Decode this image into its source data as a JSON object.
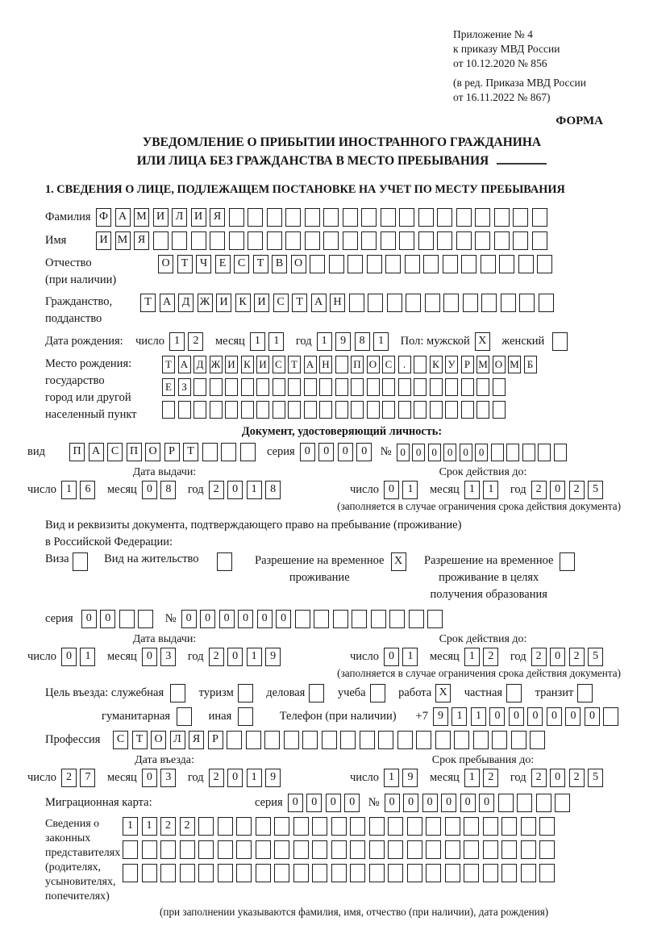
{
  "header": {
    "appendix": "Приложение № 4",
    "order1": "к приказу МВД России",
    "order2": "от 10.12.2020 № 856",
    "rev1": "(в ред. Приказа МВД России",
    "rev2": "от 16.11.2022 № 867)",
    "forma": "ФОРМА"
  },
  "title": {
    "line1": "УВЕДОМЛЕНИЕ О ПРИБЫТИИ ИНОСТРАННОГО ГРАЖДАНИНА",
    "line2": "ИЛИ ЛИЦА БЕЗ ГРАЖДАНСТВА В МЕСТО ПРЕБЫВАНИЯ"
  },
  "section1_heading": "1. СВЕДЕНИЯ О ЛИЦЕ, ПОДЛЕЖАЩЕМ ПОСТАНОВКЕ НА УЧЕТ ПО МЕСТУ ПРЕБЫВАНИЯ",
  "labels": {
    "day": "число",
    "month": "месяц",
    "year": "год",
    "seriya": "серия",
    "no": "№",
    "issue_date": "Дата выдачи:",
    "valid_until": "Срок действия до:",
    "entry_date": "Дата въезда:",
    "stay_until": "Срок пребывания до:",
    "limit_note": "(заполняется в случае ограничения срока действия документа)"
  },
  "person": {
    "surname": {
      "label": "Фамилия",
      "boxes": {
        "value": "ФАМИЛИЯ",
        "count": 24
      }
    },
    "firstname": {
      "label": "Имя",
      "boxes": {
        "value": "ИМЯ",
        "count": 24
      }
    },
    "patronymic": {
      "label1": "Отчество",
      "label2": "(при наличии)",
      "boxes": {
        "value": "ОТЧЕСТВО",
        "count": 21
      }
    },
    "citizenship": {
      "label1": "Гражданство,",
      "label2": "подданство",
      "boxes": {
        "value": "ТАДЖИКИСТАН",
        "count": 22
      }
    },
    "birth_date": {
      "label": "Дата рождения:",
      "day": {
        "value": "12",
        "count": 2
      },
      "month": {
        "value": "11",
        "count": 2
      },
      "year": {
        "value": "1981",
        "count": 4
      },
      "sex_label": "Пол: мужской",
      "male": {
        "value": "X",
        "count": 1
      },
      "female_label": "женский",
      "female": {
        "value": "",
        "count": 1
      }
    },
    "birth_place": {
      "label1": "Место рождения:",
      "label2": "государство",
      "label3": "город или другой",
      "label4": "населенный пункт",
      "row1": {
        "value": "ТАДЖИКИСТАН ПОС. КУРМОМБ",
        "count": 24
      },
      "row2": {
        "value": "ЕЗ",
        "count": 22
      },
      "row3": {
        "value": "",
        "count": 22
      }
    }
  },
  "identity_doc": {
    "heading": "Документ, удостоверяющий личность:",
    "type_label": "вид",
    "type": {
      "value": "ПАСПОРТ",
      "count": 10
    },
    "seriya": {
      "value": "0000",
      "count": 4
    },
    "number": {
      "value": "000000",
      "count": 11
    },
    "issue": {
      "day": {
        "value": "16",
        "count": 2
      },
      "month": {
        "value": "08",
        "count": 2
      },
      "year": {
        "value": "2018",
        "count": 4
      }
    },
    "valid": {
      "day": {
        "value": "01",
        "count": 2
      },
      "month": {
        "value": "11",
        "count": 2
      },
      "year": {
        "value": "2025",
        "count": 4
      }
    }
  },
  "residence_doc": {
    "intro1": "Вид и реквизиты документа, подтверждающего право на пребывание (проживание)",
    "intro2": "в Российской Федерации:",
    "visa_label": "Виза",
    "visa": {
      "value": "",
      "count": 1
    },
    "permit_label": "Вид на жительство",
    "permit": {
      "value": "",
      "count": 1
    },
    "rvp_label1": "Разрешение на временное",
    "rvp_label2": "проживание",
    "rvp": {
      "value": "X",
      "count": 1
    },
    "rvp_edu_label1": "Разрешение на временное",
    "rvp_edu_label2": "проживание в целях",
    "rvp_edu_label3": "получения образования",
    "rvp_edu": {
      "value": "",
      "count": 1
    },
    "seriya": {
      "value": "00",
      "count": 4
    },
    "number": {
      "value": "000000",
      "count": 14
    },
    "issue": {
      "day": {
        "value": "01",
        "count": 2
      },
      "month": {
        "value": "03",
        "count": 2
      },
      "year": {
        "value": "2019",
        "count": 4
      }
    },
    "valid": {
      "day": {
        "value": "01",
        "count": 2
      },
      "month": {
        "value": "12",
        "count": 2
      },
      "year": {
        "value": "2025",
        "count": 4
      }
    }
  },
  "visit": {
    "purpose_label": "Цель въезда: служебная",
    "official": {
      "value": "",
      "count": 1
    },
    "opt_tourism": "туризм",
    "tourism": {
      "value": "",
      "count": 1
    },
    "opt_business": "деловая",
    "business": {
      "value": "",
      "count": 1
    },
    "opt_study": "учеба",
    "study": {
      "value": "",
      "count": 1
    },
    "opt_work": "работа",
    "work": {
      "value": "X",
      "count": 1
    },
    "opt_private": "частная",
    "private": {
      "value": "",
      "count": 1
    },
    "opt_transit": "транзит",
    "transit": {
      "value": "",
      "count": 1
    },
    "opt_humanitarian": "гуманитарная",
    "humanitarian": {
      "value": "",
      "count": 1
    },
    "opt_other": "иная",
    "other": {
      "value": "",
      "count": 1
    },
    "phone_label": "Телефон (при наличии)",
    "phone_prefix": "+7",
    "phone": {
      "value": "911000000",
      "count": 10
    },
    "profession_label": "Профессия",
    "profession": {
      "value": "СТОЛЯР",
      "count": 23
    },
    "entry": {
      "day": {
        "value": "27",
        "count": 2
      },
      "month": {
        "value": "03",
        "count": 2
      },
      "year": {
        "value": "2019",
        "count": 4
      }
    },
    "stay": {
      "day": {
        "value": "19",
        "count": 2
      },
      "month": {
        "value": "12",
        "count": 2
      },
      "year": {
        "value": "2025",
        "count": 4
      }
    }
  },
  "migration_card": {
    "label": "Миграционная карта:",
    "seriya": {
      "value": "0000",
      "count": 4
    },
    "number": {
      "value": "000000",
      "count": 10
    }
  },
  "legal_reps": {
    "label1": "Сведения о",
    "label2": "законных",
    "label3": "представителях",
    "label4": "(родителях,",
    "label5": "усыновителях,",
    "label6": "попечителях)",
    "row1": {
      "value": "1122",
      "count": 23
    },
    "row2": {
      "value": "",
      "count": 23
    },
    "row3": {
      "value": "",
      "count": 23
    },
    "note": "(при заполнении указываются фамилия, имя, отчество (при наличии), дата рождения)"
  }
}
